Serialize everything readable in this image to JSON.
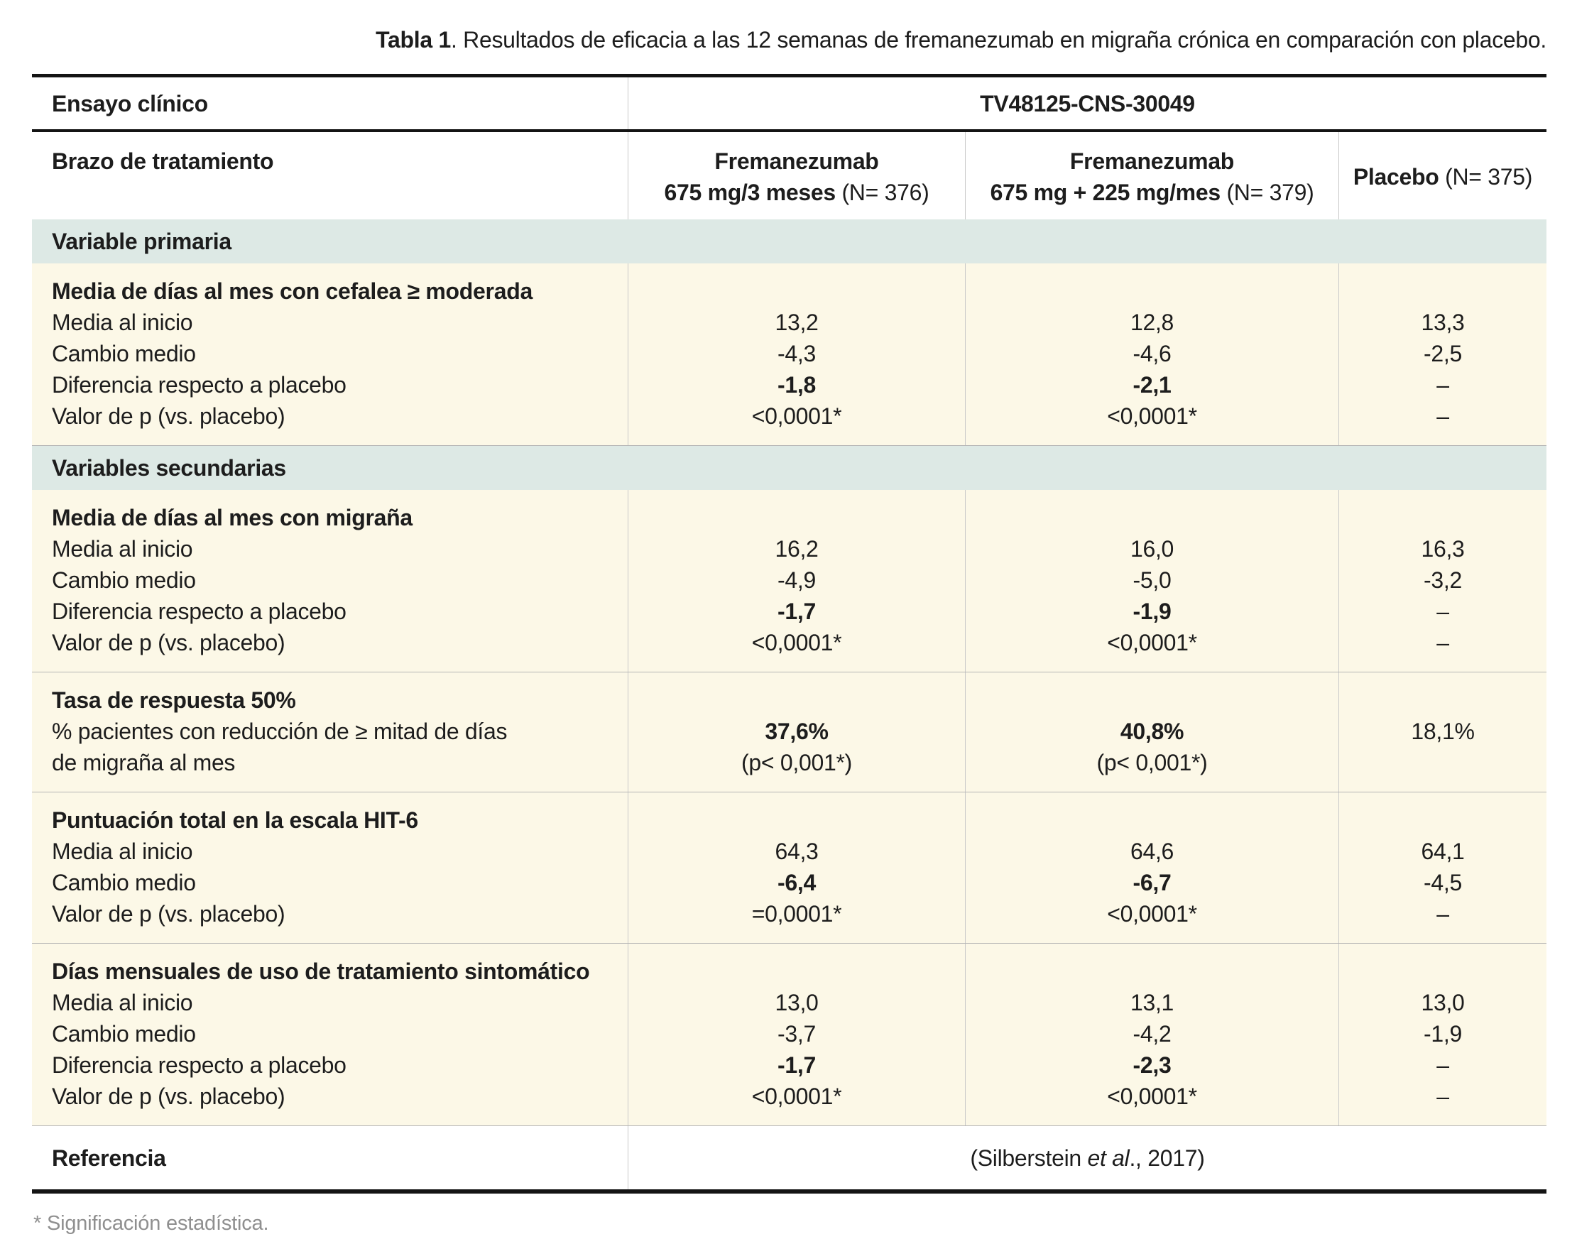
{
  "title": {
    "bold": "Tabla 1",
    "rest": ". Resultados de eficacia a las 12 semanas de fremanezumab en migraña crónica en comparación con placebo."
  },
  "header": {
    "trial_label": "Ensayo clínico",
    "trial_value": "TV48125-CNS-30049",
    "arm_label": "Brazo de tratamiento",
    "columns": [
      {
        "name": "Fremanezumab",
        "dose": "675 mg/3 meses",
        "n": "(N= 376)"
      },
      {
        "name": "Fremanezumab",
        "dose": "675 mg + 225 mg/mes",
        "n": "(N= 379)"
      },
      {
        "name": "Placebo",
        "n": "(N= 375)"
      }
    ]
  },
  "sections": {
    "primary": "Variable primaria",
    "secondary": "Variables secundarias"
  },
  "blocks": [
    {
      "title": "Media de días al mes con cefalea ≥ moderada",
      "rows": [
        {
          "label": "Media al inicio",
          "values": [
            "13,2",
            "12,8",
            "13,3"
          ]
        },
        {
          "label": "Cambio medio",
          "values": [
            "-4,3",
            "-4,6",
            "-2,5"
          ]
        },
        {
          "label": "Diferencia respecto a placebo",
          "values": [
            "-1,8",
            "-2,1",
            "–"
          ]
        },
        {
          "label": "Valor de p (vs. placebo)",
          "values": [
            "<0,0001*",
            "<0,0001*",
            "–"
          ]
        }
      ]
    },
    {
      "title": "Media de días al mes con migraña",
      "rows": [
        {
          "label": "Media al inicio",
          "values": [
            "16,2",
            "16,0",
            "16,3"
          ]
        },
        {
          "label": "Cambio medio",
          "values": [
            "-4,9",
            "-5,0",
            "-3,2"
          ]
        },
        {
          "label": "Diferencia respecto a placebo",
          "values": [
            "-1,7",
            "-1,9",
            "–"
          ]
        },
        {
          "label": "Valor de p (vs. placebo)",
          "values": [
            "<0,0001*",
            "<0,0001*",
            "–"
          ]
        }
      ]
    },
    {
      "title": "Tasa de respuesta 50%",
      "subtitle_line1": "% pacientes con reducción de ≥ mitad de días",
      "subtitle_line2": "de migraña al mes",
      "values_pct": [
        "37,6%",
        "40,8%",
        "18,1%"
      ],
      "values_p": [
        "(p< 0,001*)",
        "(p< 0,001*)",
        ""
      ]
    },
    {
      "title": "Puntuación total en la escala HIT-6",
      "rows": [
        {
          "label": "Media al inicio",
          "values": [
            "64,3",
            "64,6",
            "64,1"
          ]
        },
        {
          "label": "Cambio medio",
          "values": [
            "-6,4",
            "-6,7",
            "-4,5"
          ]
        },
        {
          "label": "Valor de p (vs. placebo)",
          "values": [
            "=0,0001*",
            "<0,0001*",
            "–"
          ]
        }
      ]
    },
    {
      "title": "Días mensuales de uso de tratamiento sintomático",
      "rows": [
        {
          "label": "Media al inicio",
          "values": [
            "13,0",
            "13,1",
            "13,0"
          ]
        },
        {
          "label": "Cambio medio",
          "values": [
            "-3,7",
            "-4,2",
            "-1,9"
          ]
        },
        {
          "label": "Diferencia respecto a placebo",
          "values": [
            "-1,7",
            "-2,3",
            "–"
          ]
        },
        {
          "label": "Valor de p (vs. placebo)",
          "values": [
            "<0,0001*",
            "<0,0001*",
            "–"
          ]
        }
      ]
    }
  ],
  "reference": {
    "label": "Referencia",
    "pre": "(Silberstein ",
    "italic": "et al",
    "post": "., 2017)"
  },
  "footnote": "* Significación estadística."
}
